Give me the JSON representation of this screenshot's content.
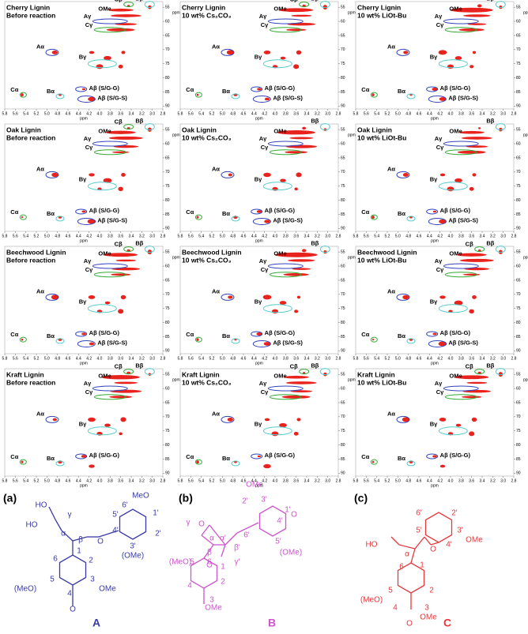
{
  "panels": [
    {
      "title": [
        "Cherry Lignin",
        "Before reaction"
      ],
      "labels": [
        "OMe",
        "Cβ",
        "Bβ",
        "Aγ",
        "Cγ",
        "Aα",
        "Bγ",
        "Cα",
        "Bα",
        "Aβ (S/G-G)",
        "Aβ (S/G-S)"
      ]
    },
    {
      "title": [
        "Cherry Lignin",
        "10 wt% Cs₂CO₃"
      ],
      "labels": [
        "OMe",
        "Cβ",
        "Bβ",
        "Aγ",
        "Cγ",
        "Aα",
        "Bγ",
        "Cα",
        "Bα",
        "Aβ (S/G-G)",
        "Aβ (S/G-S)"
      ]
    },
    {
      "title": [
        "Cherry Lignin",
        "10 wt% LiOt-Bu"
      ],
      "labels": [
        "OMe",
        "Bβ",
        "Aγ",
        "Cγ",
        "Aα",
        "Bγ",
        "Cα",
        "Bα",
        "Aβ (S/G-G)",
        "Aβ (S/G-S)"
      ]
    },
    {
      "title": [
        "Oak Lignin",
        "Before reaction"
      ],
      "labels": [
        "OMe",
        "Cβ",
        "Bβ",
        "Aγ",
        "Cγ",
        "Aα",
        "Bγ",
        "Cα",
        "Bα",
        "Aβ (S/G-G)",
        "Aβ (S/G-S)"
      ]
    },
    {
      "title": [
        "Oak Lignin",
        "10 wt% Cs₂CO₃"
      ],
      "labels": [
        "OMe",
        "Bβ",
        "Aγ",
        "Cγ",
        "Aα",
        "Bγ",
        "Cα",
        "Bα",
        "Aβ (S/G-G)",
        "Aβ (S/G-S)"
      ]
    },
    {
      "title": [
        "Oak Lignin",
        "10 wt% LiOt-Bu"
      ],
      "labels": [
        "OMe",
        "Bβ",
        "Aγ",
        "Cγ",
        "Aα",
        "Bγ",
        "Cα",
        "Bα",
        "Aβ (S/G-G)",
        "Aβ (S/G-S)"
      ]
    },
    {
      "title": [
        "Beechwood Lignin",
        "Before reaction"
      ],
      "labels": [
        "OMe",
        "Cβ",
        "Bβ",
        "Aγ",
        "Cγ",
        "Aα",
        "Bγ",
        "Cα",
        "Bα",
        "Aβ (S/G-G)",
        "Aβ (S/G-S)"
      ]
    },
    {
      "title": [
        "Beechwood Lignin",
        "10 wt% Cs₂CO₃"
      ],
      "labels": [
        "OMe",
        "Bβ",
        "Aγ",
        "Cγ",
        "Aα",
        "Bγ",
        "Cα",
        "Bα",
        "Aβ (S/G-G)",
        "Aβ (S/G-S)"
      ]
    },
    {
      "title": [
        "Beechwood Lignin",
        "10 wt% LiOt-Bu"
      ],
      "labels": [
        "OMe",
        "Cβ",
        "Bβ",
        "Aγ",
        "Cγ",
        "Aα",
        "Bγ",
        "Cα",
        "Bα",
        "Aβ (S/G-G)",
        "Aβ (S/G-S)"
      ]
    },
    {
      "title": [
        "Kraft Lignin",
        "Before reaction"
      ],
      "labels": [
        "OMe",
        "Cβ",
        "Bβ",
        "Aγ",
        "Cγ",
        "Aα",
        "Bγ",
        "Cα",
        "Bα",
        "Aβ (S/G-G)"
      ]
    },
    {
      "title": [
        "Kraft Lignin",
        "10 wt% Cs₂CO₃"
      ],
      "labels": [
        "OMe",
        "Cβ",
        "Bβ",
        "Aγ",
        "Cγ",
        "Aα",
        "Bγ",
        "Cα",
        "Bα",
        "Aβ (S/G-G)"
      ]
    },
    {
      "title": [
        "Kraft Lignin",
        "10 wt% LiOt-Bu"
      ],
      "labels": [
        "OMe",
        "Cβ",
        "Bβ",
        "Aγ",
        "Cγ",
        "Aα",
        "Bγ",
        "Cα",
        "Bα",
        "Aβ (S/G-G)"
      ]
    }
  ],
  "x_axis": {
    "ticks": [
      "5.8",
      "5.6",
      "5.4",
      "5.2",
      "5.0",
      "4.8",
      "4.6",
      "4.4",
      "4.2",
      "4.0",
      "3.8",
      "3.6",
      "3.4",
      "3.2",
      "3.0",
      "2.8"
    ],
    "label": "ppm"
  },
  "y_axis": {
    "ticks": [
      "55",
      "60",
      "65",
      "70",
      "75",
      "80",
      "85",
      "90"
    ],
    "label": "ppm"
  },
  "structures": [
    {
      "tag": "(a)",
      "name": "A",
      "atoms": [
        "HO",
        "γ",
        "HO",
        "α",
        "β",
        "O",
        "MeO",
        "6'",
        "5'",
        "1'",
        "4'",
        "2'",
        "3'",
        "(OMe)",
        "1",
        "6",
        "2",
        "5",
        "3",
        "(MeO)",
        "4",
        "OMe",
        "O"
      ]
    },
    {
      "tag": "(b)",
      "name": "B",
      "atoms": [
        "OMe",
        "2'",
        "3'",
        "1'",
        "4'",
        "O",
        "6'",
        "5'",
        "(OMe)",
        "γ",
        "O",
        "α'",
        "α",
        "β",
        "β'",
        "γ'",
        "O",
        "(MeO)",
        "5",
        "6",
        "1",
        "4",
        "2",
        "3",
        "OMe"
      ]
    },
    {
      "tag": "(c)",
      "name": "C",
      "atoms": [
        "6'",
        "2'",
        "HO",
        "5'",
        "3'",
        "OMe",
        "α",
        "O",
        "4'",
        "6",
        "1",
        "(MeO)",
        "5",
        "2",
        "4",
        "3",
        "OMe",
        "O"
      ]
    }
  ]
}
